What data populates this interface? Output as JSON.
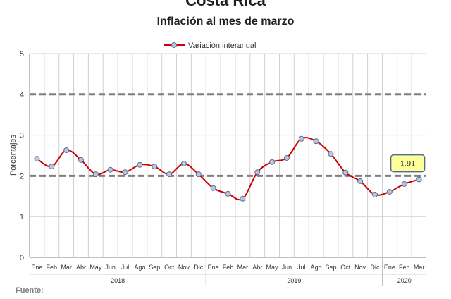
{
  "chart_data": {
    "type": "line",
    "title": "Costa Rica",
    "subtitle": "Inflación al mes de marzo",
    "ylabel": "Porcentajes",
    "ylim": [
      0,
      5
    ],
    "yticks": [
      0,
      1,
      2,
      3,
      4,
      5
    ],
    "reference_lines": [
      2,
      4
    ],
    "legend": "top-center",
    "grid": true,
    "categories": [
      "Ene",
      "Feb",
      "Mar",
      "Abr",
      "May",
      "Jun",
      "Jul",
      "Ago",
      "Sep",
      "Oct",
      "Nov",
      "Dic",
      "Ene",
      "Feb",
      "Mar",
      "Abr",
      "May",
      "Jun",
      "Jul",
      "Ago",
      "Sep",
      "Oct",
      "Nov",
      "Dic",
      "Ene",
      "Feb",
      "Mar"
    ],
    "years": [
      {
        "label": "2018",
        "count": 12
      },
      {
        "label": "2019",
        "count": 12
      },
      {
        "label": "2020",
        "count": 3
      }
    ],
    "series": [
      {
        "name": "Variación interanual",
        "color": "#cc0000",
        "values": [
          2.42,
          2.23,
          2.63,
          2.39,
          2.04,
          2.15,
          2.09,
          2.27,
          2.23,
          2.04,
          2.3,
          2.04,
          1.7,
          1.56,
          1.44,
          2.09,
          2.34,
          2.44,
          2.91,
          2.85,
          2.54,
          2.08,
          1.87,
          1.54,
          1.61,
          1.8,
          1.91
        ]
      }
    ],
    "annotation": "1.91"
  },
  "footer": {
    "source_label": "Fuente:"
  }
}
